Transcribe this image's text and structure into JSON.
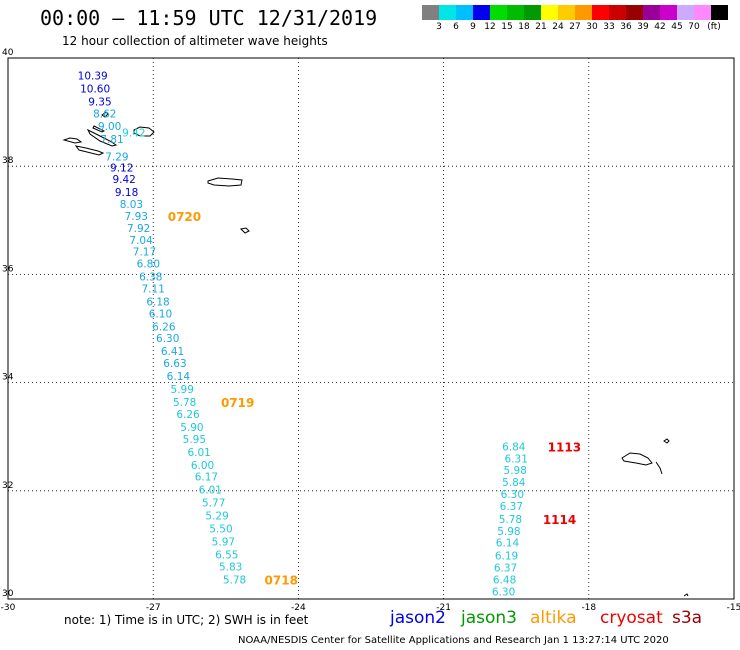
{
  "header": {
    "title": "00:00 – 11:59 UTC 12/31/2019",
    "subtitle": "12 hour collection of altimeter wave heights"
  },
  "legend": {
    "unit": "(ft)",
    "bins": [
      {
        "label": "",
        "color": "#808080"
      },
      {
        "label": "3",
        "color": "#00e5e5"
      },
      {
        "label": "6",
        "color": "#00bfff"
      },
      {
        "label": "9",
        "color": "#0000ee"
      },
      {
        "label": "12",
        "color": "#00dd00"
      },
      {
        "label": "15",
        "color": "#00bb00"
      },
      {
        "label": "18",
        "color": "#009900"
      },
      {
        "label": "21",
        "color": "#ffff00"
      },
      {
        "label": "24",
        "color": "#ffcc00"
      },
      {
        "label": "27",
        "color": "#ff9900"
      },
      {
        "label": "30",
        "color": "#ff0000"
      },
      {
        "label": "33",
        "color": "#cc0000"
      },
      {
        "label": "36",
        "color": "#990000"
      },
      {
        "label": "39",
        "color": "#990099"
      },
      {
        "label": "42",
        "color": "#cc00cc"
      },
      {
        "label": "45",
        "color": "#ccaaff"
      },
      {
        "label": "70",
        "color": "#ff88ff"
      },
      {
        "label": "",
        "color": "#000000"
      }
    ]
  },
  "map": {
    "lon_range": [
      -30,
      -15
    ],
    "lat_range": [
      30,
      40
    ],
    "lon_ticks": [
      "-30",
      "-27",
      "-24",
      "-21",
      "-18",
      "-15"
    ],
    "lat_ticks": [
      "40",
      "38",
      "36",
      "34",
      "32",
      "30"
    ],
    "colors": {
      "lightblue": "#1aa8e0",
      "cyan": "#20c8d8",
      "blue": "#0000dd",
      "orange": "#ff9900",
      "red": "#ee0000"
    },
    "track_west": [
      {
        "v": "10.39",
        "lon": -28.25,
        "lat": 39.68,
        "c": "blue"
      },
      {
        "v": "10.60",
        "lon": -28.2,
        "lat": 39.44,
        "c": "blue"
      },
      {
        "v": "9.35",
        "lon": -28.1,
        "lat": 39.2,
        "c": "blue"
      },
      {
        "v": "9.42",
        "lon": -27.4,
        "lat": 38.62,
        "c": "cyan"
      },
      {
        "v": "8.62",
        "lon": -28.0,
        "lat": 38.97,
        "c": "lightblue"
      },
      {
        "v": "9.00",
        "lon": -27.9,
        "lat": 38.74,
        "c": "lightblue"
      },
      {
        "v": "7.81",
        "lon": -27.85,
        "lat": 38.5,
        "c": "lightblue"
      },
      {
        "v": "7.29",
        "lon": -27.75,
        "lat": 38.18,
        "c": "lightblue"
      },
      {
        "v": "9.12",
        "lon": -27.65,
        "lat": 37.98,
        "c": "blue"
      },
      {
        "v": "9.42",
        "lon": -27.6,
        "lat": 37.76,
        "c": "blue"
      },
      {
        "v": "9.18",
        "lon": -27.55,
        "lat": 37.52,
        "c": "blue"
      },
      {
        "v": "8.03",
        "lon": -27.45,
        "lat": 37.3,
        "c": "lightblue"
      },
      {
        "v": "7.93",
        "lon": -27.35,
        "lat": 37.08,
        "c": "lightblue"
      },
      {
        "v": "7.92",
        "lon": -27.3,
        "lat": 36.86,
        "c": "lightblue"
      },
      {
        "v": "7.04",
        "lon": -27.25,
        "lat": 36.64,
        "c": "lightblue"
      },
      {
        "v": "7.17",
        "lon": -27.18,
        "lat": 36.42,
        "c": "lightblue"
      },
      {
        "v": "6.80",
        "lon": -27.1,
        "lat": 36.2,
        "c": "lightblue"
      },
      {
        "v": "6.38",
        "lon": -27.05,
        "lat": 35.96,
        "c": "lightblue"
      },
      {
        "v": "7.11",
        "lon": -27.0,
        "lat": 35.74,
        "c": "lightblue"
      },
      {
        "v": "6.18",
        "lon": -26.9,
        "lat": 35.5,
        "c": "lightblue"
      },
      {
        "v": "6.10",
        "lon": -26.85,
        "lat": 35.28,
        "c": "lightblue"
      },
      {
        "v": "6.26",
        "lon": -26.78,
        "lat": 35.04,
        "c": "lightblue"
      },
      {
        "v": "6.30",
        "lon": -26.7,
        "lat": 34.82,
        "c": "lightblue"
      },
      {
        "v": "6.41",
        "lon": -26.6,
        "lat": 34.58,
        "c": "lightblue"
      },
      {
        "v": "6.63",
        "lon": -26.55,
        "lat": 34.36,
        "c": "lightblue"
      },
      {
        "v": "6.14",
        "lon": -26.48,
        "lat": 34.12,
        "c": "lightblue"
      },
      {
        "v": "5.99",
        "lon": -26.4,
        "lat": 33.88,
        "c": "cyan"
      },
      {
        "v": "5.78",
        "lon": -26.35,
        "lat": 33.64,
        "c": "cyan"
      },
      {
        "v": "6.26",
        "lon": -26.28,
        "lat": 33.42,
        "c": "cyan"
      },
      {
        "v": "5.90",
        "lon": -26.2,
        "lat": 33.18,
        "c": "cyan"
      },
      {
        "v": "5.95",
        "lon": -26.15,
        "lat": 32.96,
        "c": "cyan"
      },
      {
        "v": "6.01",
        "lon": -26.05,
        "lat": 32.72,
        "c": "cyan"
      },
      {
        "v": "6.00",
        "lon": -25.98,
        "lat": 32.48,
        "c": "cyan"
      },
      {
        "v": "6.17",
        "lon": -25.9,
        "lat": 32.26,
        "c": "cyan"
      },
      {
        "v": "6.01",
        "lon": -25.82,
        "lat": 32.02,
        "c": "cyan"
      },
      {
        "v": "5.77",
        "lon": -25.75,
        "lat": 31.78,
        "c": "cyan"
      },
      {
        "v": "5.29",
        "lon": -25.68,
        "lat": 31.54,
        "c": "cyan"
      },
      {
        "v": "5.50",
        "lon": -25.6,
        "lat": 31.3,
        "c": "cyan"
      },
      {
        "v": "5.97",
        "lon": -25.55,
        "lat": 31.06,
        "c": "cyan"
      },
      {
        "v": "6.55",
        "lon": -25.48,
        "lat": 30.82,
        "c": "cyan"
      },
      {
        "v": "5.83",
        "lon": -25.4,
        "lat": 30.6,
        "c": "cyan"
      },
      {
        "v": "5.78",
        "lon": -25.32,
        "lat": 30.36,
        "c": "cyan"
      }
    ],
    "track_east": [
      {
        "v": "6.84",
        "lon": -19.55,
        "lat": 32.82,
        "c": "cyan"
      },
      {
        "v": "6.31",
        "lon": -19.5,
        "lat": 32.6,
        "c": "cyan"
      },
      {
        "v": "5.98",
        "lon": -19.52,
        "lat": 32.38,
        "c": "cyan"
      },
      {
        "v": "5.84",
        "lon": -19.55,
        "lat": 32.16,
        "c": "cyan"
      },
      {
        "v": "6.30",
        "lon": -19.58,
        "lat": 31.94,
        "c": "cyan"
      },
      {
        "v": "6.37",
        "lon": -19.6,
        "lat": 31.72,
        "c": "cyan"
      },
      {
        "v": "5.78",
        "lon": -19.62,
        "lat": 31.48,
        "c": "cyan"
      },
      {
        "v": "5.98",
        "lon": -19.65,
        "lat": 31.26,
        "c": "cyan"
      },
      {
        "v": "6.14",
        "lon": -19.68,
        "lat": 31.04,
        "c": "cyan"
      },
      {
        "v": "6.19",
        "lon": -19.7,
        "lat": 30.8,
        "c": "cyan"
      },
      {
        "v": "6.37",
        "lon": -19.72,
        "lat": 30.58,
        "c": "cyan"
      },
      {
        "v": "6.48",
        "lon": -19.74,
        "lat": 30.36,
        "c": "cyan"
      },
      {
        "v": "6.30",
        "lon": -19.76,
        "lat": 30.14,
        "c": "cyan"
      }
    ],
    "time_labels": [
      {
        "t": "0720",
        "lon": -26.7,
        "lat": 37.08,
        "c": "orange"
      },
      {
        "t": "0719",
        "lon": -25.6,
        "lat": 33.64,
        "c": "orange"
      },
      {
        "t": "0718",
        "lon": -24.7,
        "lat": 30.36,
        "c": "orange"
      },
      {
        "t": "1113",
        "lon": -18.85,
        "lat": 32.82,
        "c": "red"
      },
      {
        "t": "1114",
        "lon": -18.95,
        "lat": 31.48,
        "c": "red"
      }
    ]
  },
  "footer": {
    "note": "note:  1) Time is in UTC;  2) SWH is in feet",
    "satellites": [
      {
        "name": "jason2",
        "color": "#0000ee"
      },
      {
        "name": "jason3",
        "color": "#009900"
      },
      {
        "name": "altika",
        "color": "#ff9900"
      },
      {
        "name": "cryosat",
        "color": "#ee0000"
      },
      {
        "name": "s3a",
        "color": "#990000"
      }
    ],
    "credit": "NOAA/NESDIS Center for Satellite Applications and Research    Jan  1 13:27:14 UTC 2020"
  }
}
